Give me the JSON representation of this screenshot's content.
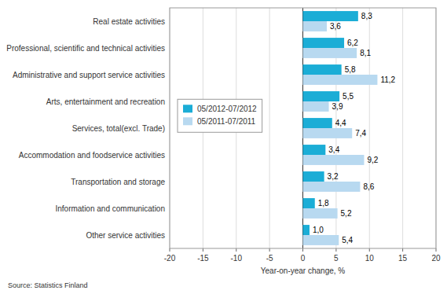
{
  "chart_data": {
    "type": "bar",
    "orientation": "horizontal",
    "categories": [
      "Other service activities",
      "Information and communication",
      "Transportation and storage",
      "Accommodation and foodservice activities",
      "Services, total(excl. Trade)",
      "Arts, entertainment and recreation",
      "Administrative and support service activities",
      "Professional, scientific and technical activities",
      "Real estate activities"
    ],
    "series": [
      {
        "name": "05/2012-07/2012",
        "color": "#1badd6",
        "values": [
          1.0,
          1.8,
          3.2,
          3.4,
          4.4,
          5.5,
          5.8,
          6.2,
          8.3
        ],
        "value_labels": [
          "1,0",
          "1,8",
          "3,2",
          "3,4",
          "4,4",
          "5,5",
          "5,8",
          "6,2",
          "8,3"
        ]
      },
      {
        "name": "05/2011-07/2011",
        "color": "#b8d9f0",
        "values": [
          5.4,
          5.2,
          8.6,
          9.2,
          7.4,
          3.9,
          11.2,
          8.1,
          3.6
        ],
        "value_labels": [
          "5,4",
          "5,2",
          "8,6",
          "9,2",
          "7,4",
          "3,9",
          "11,2",
          "8,1",
          "3,6"
        ]
      }
    ],
    "xlabel": "Year-on-year change, %",
    "source": "Source: Statistics Finland",
    "xlim": [
      -20,
      20
    ],
    "xticks": [
      -20,
      -15,
      -10,
      -5,
      0,
      5,
      10,
      15,
      20
    ],
    "grid": true,
    "legend": "upper left",
    "data_labels": true
  }
}
